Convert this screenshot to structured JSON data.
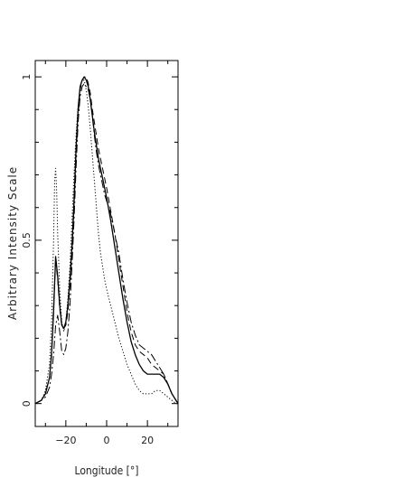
{
  "chart_data": {
    "type": "line",
    "title": "",
    "xlabel": "Longitude [°]",
    "ylabel": "Arbitrary Intensity Scale",
    "xlim": [
      -35,
      35
    ],
    "ylim": [
      -0.07,
      1.05
    ],
    "xticks": [
      -20,
      0,
      20
    ],
    "xtick_labels": [
      "−20",
      "0",
      "20"
    ],
    "yticks": [
      0,
      0.5,
      1
    ],
    "ytick_labels": [
      "0",
      "0.5",
      "1"
    ],
    "grid": false,
    "legend": "none",
    "series": [
      {
        "style": "solid",
        "x": [
          -35,
          -32,
          -30,
          -28,
          -27,
          -26,
          -25,
          -24,
          -23,
          -22,
          -21,
          -20,
          -19,
          -18,
          -17,
          -16,
          -15,
          -14,
          -13,
          -12,
          -11,
          -10,
          -9,
          -8,
          -7,
          -6,
          -5,
          -4,
          -3,
          -2,
          -1,
          0,
          2,
          4,
          6,
          8,
          10,
          12,
          14,
          16,
          18,
          20,
          22,
          24,
          26,
          28,
          30,
          32,
          34,
          35
        ],
        "y": [
          0.0,
          0.01,
          0.03,
          0.08,
          0.15,
          0.28,
          0.45,
          0.39,
          0.3,
          0.24,
          0.23,
          0.25,
          0.3,
          0.38,
          0.48,
          0.62,
          0.78,
          0.9,
          0.97,
          0.99,
          1.0,
          0.99,
          0.97,
          0.93,
          0.88,
          0.83,
          0.79,
          0.75,
          0.72,
          0.69,
          0.66,
          0.63,
          0.56,
          0.48,
          0.4,
          0.32,
          0.25,
          0.19,
          0.15,
          0.12,
          0.1,
          0.09,
          0.09,
          0.09,
          0.09,
          0.08,
          0.06,
          0.03,
          0.01,
          0.0
        ]
      },
      {
        "style": "dashed",
        "x": [
          -35,
          -32,
          -30,
          -28,
          -27,
          -26,
          -25,
          -24,
          -23,
          -22,
          -21,
          -20,
          -19,
          -18,
          -17,
          -16,
          -15,
          -14,
          -13,
          -12,
          -11,
          -10,
          -9,
          -8,
          -7,
          -6,
          -5,
          -4,
          -3,
          -2,
          -1,
          0,
          2,
          4,
          6,
          8,
          10,
          12,
          14,
          16,
          18,
          20,
          22,
          24,
          26,
          28,
          30,
          32,
          34,
          35
        ],
        "y": [
          0.0,
          0.01,
          0.03,
          0.08,
          0.16,
          0.3,
          0.44,
          0.38,
          0.29,
          0.24,
          0.23,
          0.24,
          0.28,
          0.36,
          0.46,
          0.6,
          0.76,
          0.88,
          0.96,
          0.99,
          1.0,
          1.0,
          0.98,
          0.95,
          0.9,
          0.86,
          0.82,
          0.78,
          0.75,
          0.72,
          0.69,
          0.66,
          0.59,
          0.52,
          0.44,
          0.36,
          0.28,
          0.22,
          0.18,
          0.16,
          0.15,
          0.14,
          0.12,
          0.11,
          0.1,
          0.09,
          0.06,
          0.03,
          0.01,
          0.0
        ]
      },
      {
        "style": "dash-dot",
        "x": [
          -35,
          -32,
          -30,
          -28,
          -27,
          -26,
          -25,
          -24,
          -23,
          -22,
          -21,
          -20,
          -19,
          -18,
          -17,
          -16,
          -15,
          -14,
          -13,
          -12,
          -11,
          -10,
          -9,
          -8,
          -7,
          -6,
          -5,
          -4,
          -3,
          -2,
          -1,
          0,
          2,
          4,
          6,
          8,
          10,
          12,
          14,
          16,
          18,
          20,
          22,
          24,
          26,
          28,
          30,
          32,
          34,
          35
        ],
        "y": [
          0.0,
          0.01,
          0.02,
          0.05,
          0.09,
          0.15,
          0.24,
          0.27,
          0.22,
          0.16,
          0.15,
          0.17,
          0.22,
          0.3,
          0.42,
          0.56,
          0.72,
          0.86,
          0.94,
          0.97,
          0.98,
          0.97,
          0.96,
          0.93,
          0.88,
          0.82,
          0.77,
          0.73,
          0.7,
          0.67,
          0.64,
          0.62,
          0.58,
          0.52,
          0.46,
          0.38,
          0.31,
          0.25,
          0.21,
          0.18,
          0.17,
          0.16,
          0.15,
          0.13,
          0.11,
          0.09,
          0.06,
          0.03,
          0.01,
          0.0
        ]
      },
      {
        "style": "dotted",
        "x": [
          -35,
          -32,
          -30,
          -28,
          -27,
          -26,
          -25.5,
          -25,
          -24.5,
          -24,
          -23,
          -22,
          -21,
          -20,
          -19,
          -18,
          -17,
          -16,
          -15,
          -14,
          -13,
          -12,
          -11,
          -10,
          -9,
          -8,
          -7,
          -6,
          -5,
          -4,
          -3,
          -2,
          -1,
          0,
          2,
          4,
          6,
          8,
          10,
          12,
          14,
          16,
          18,
          20,
          22,
          24,
          26,
          28,
          30,
          32,
          34,
          35
        ],
        "y": [
          0.0,
          0.01,
          0.04,
          0.12,
          0.25,
          0.5,
          0.68,
          0.72,
          0.65,
          0.52,
          0.35,
          0.25,
          0.22,
          0.25,
          0.32,
          0.42,
          0.56,
          0.7,
          0.82,
          0.91,
          0.97,
          0.99,
          0.99,
          0.96,
          0.91,
          0.84,
          0.76,
          0.68,
          0.6,
          0.52,
          0.46,
          0.42,
          0.38,
          0.35,
          0.3,
          0.25,
          0.2,
          0.16,
          0.12,
          0.09,
          0.06,
          0.04,
          0.03,
          0.03,
          0.03,
          0.04,
          0.04,
          0.03,
          0.02,
          0.01,
          0.0,
          0.0
        ]
      }
    ]
  }
}
